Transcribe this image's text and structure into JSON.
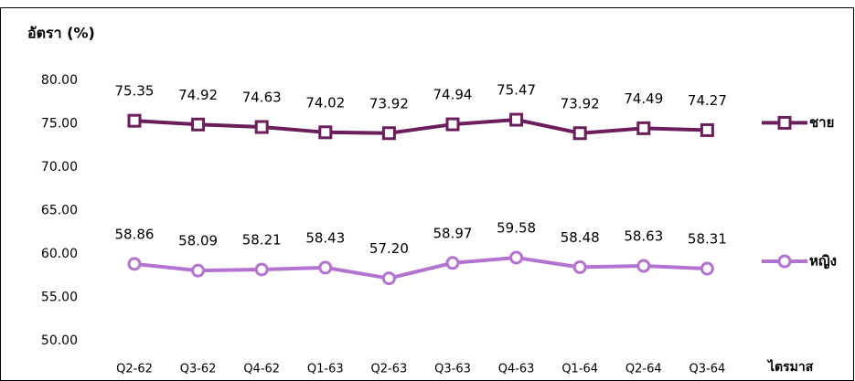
{
  "chart_data": {
    "type": "line",
    "y_label": "อัตรา (%)",
    "x_label": "ไตรมาส",
    "categories": [
      "Q2-62",
      "Q3-62",
      "Q4-62",
      "Q1-63",
      "Q2-63",
      "Q3-63",
      "Q4-63",
      "Q1-64",
      "Q2-64",
      "Q3-64"
    ],
    "series": [
      {
        "name": "ชาย",
        "color": "#6b1d5c",
        "marker": "square",
        "values": [
          75.35,
          74.92,
          74.63,
          74.02,
          73.92,
          74.94,
          75.47,
          73.92,
          74.49,
          74.27
        ],
        "value_labels": [
          "75.35",
          "74.92",
          "74.63",
          "74.02",
          "73.92",
          "74.94",
          "75.47",
          "73.92",
          "74.49",
          "74.27"
        ]
      },
      {
        "name": "หญิง",
        "color": "#b473d1",
        "marker": "circle",
        "values": [
          58.86,
          58.09,
          58.21,
          58.43,
          57.2,
          58.97,
          59.58,
          58.48,
          58.63,
          58.31
        ],
        "value_labels": [
          "58.86",
          "58.09",
          "58.21",
          "58.43",
          "57.20",
          "58.97",
          "59.58",
          "58.48",
          "58.63",
          "58.31"
        ]
      }
    ],
    "ylim": [
      50,
      80
    ],
    "yticks": [
      {
        "value": 50,
        "label": "50.00"
      },
      {
        "value": 55,
        "label": "55.00"
      },
      {
        "value": 60,
        "label": "60.00"
      },
      {
        "value": 65,
        "label": "65.00"
      },
      {
        "value": 70,
        "label": "70.00"
      },
      {
        "value": 75,
        "label": "75.00"
      },
      {
        "value": 80,
        "label": "80.00"
      }
    ],
    "grid": false
  }
}
